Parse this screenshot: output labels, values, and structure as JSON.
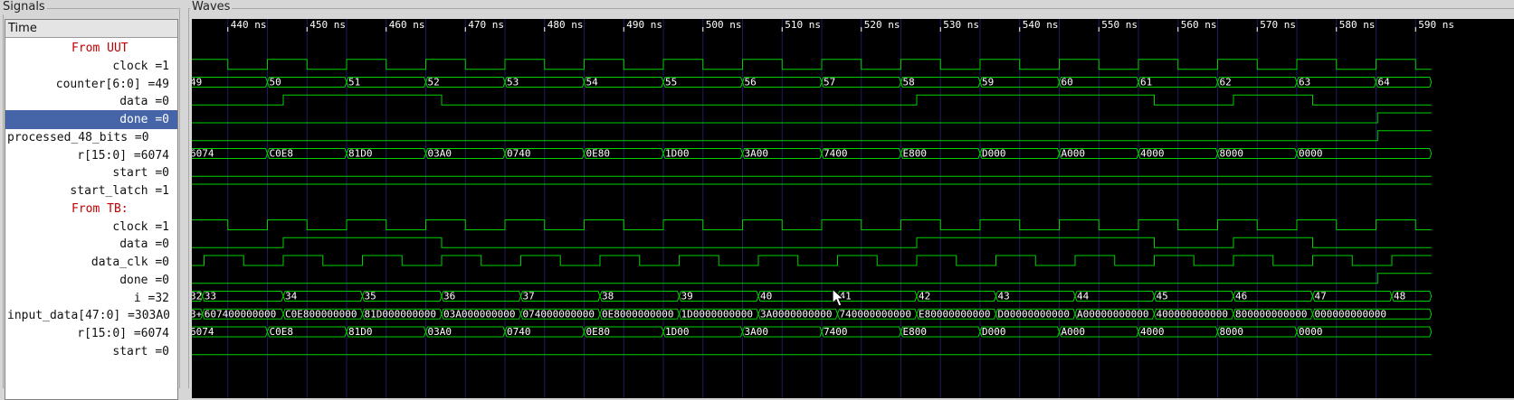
{
  "panels": {
    "signals_title": "Signals",
    "waves_title": "Waves"
  },
  "signals_header": "Time",
  "time_axis": {
    "start_ns": 435,
    "end_ns": 592,
    "label_start_ns": 440,
    "label_step_ns": 10,
    "unit": "ns",
    "labels": [
      "440 ns",
      "450 ns",
      "460 ns",
      "470 ns",
      "480 ns",
      "490 ns",
      "500 ns",
      "510 ns",
      "520 ns",
      "530 ns",
      "540 ns",
      "550 ns",
      "560 ns",
      "570 ns",
      "580 ns",
      "590 ns"
    ]
  },
  "colors": {
    "wave": "#00d000",
    "grid": "#1c1c60",
    "group_label": "#c00000",
    "selected_row": "#4565a8",
    "bus_text": "#ffffff",
    "time_text": "#ffffff"
  },
  "signals": [
    {
      "label": "From UUT",
      "group": true
    },
    {
      "label": "clock =1",
      "type": "bit",
      "trans": [
        435,
        440,
        445,
        450,
        455,
        460,
        465,
        470,
        475,
        480,
        485,
        490,
        495,
        500,
        505,
        510,
        515,
        520,
        525,
        530,
        535,
        540,
        545,
        550,
        555,
        560,
        565,
        570,
        575,
        580,
        585,
        590,
        592
      ],
      "start": 1
    },
    {
      "label": "counter[6:0] =49",
      "type": "bus",
      "trans": [
        435,
        445,
        455,
        465,
        475,
        485,
        495,
        505,
        515,
        525,
        535,
        545,
        555,
        565,
        575,
        585,
        592
      ],
      "values": [
        "49",
        "50",
        "51",
        "52",
        "53",
        "54",
        "55",
        "56",
        "57",
        "58",
        "59",
        "60",
        "61",
        "62",
        "63",
        "64"
      ]
    },
    {
      "label": "data =0",
      "type": "bit",
      "trans": [
        435,
        447,
        467,
        527,
        557,
        567,
        577,
        592
      ],
      "start": 0
    },
    {
      "label": "done =0",
      "type": "bit",
      "trans": [
        435,
        585.2,
        592
      ],
      "start": 0,
      "selected": true
    },
    {
      "label": "processed_48_bits =0",
      "type": "bit",
      "trans": [
        435,
        585.2,
        592
      ],
      "start": 0,
      "plain": true
    },
    {
      "label": "r[15:0] =6074",
      "type": "bus",
      "trans": [
        435,
        445,
        455,
        465,
        475,
        485,
        495,
        505,
        515,
        525,
        535,
        545,
        555,
        565,
        575,
        592
      ],
      "values": [
        "6074",
        "C0E8",
        "81D0",
        "03A0",
        "0740",
        "0E80",
        "1D00",
        "3A00",
        "7400",
        "E800",
        "D000",
        "A000",
        "4000",
        "8000",
        "0000"
      ]
    },
    {
      "label": "start =0",
      "type": "bit",
      "trans": [
        435,
        592
      ],
      "start": 0
    },
    {
      "label": "start_latch =1",
      "type": "bit",
      "trans": [
        435,
        592
      ],
      "start": 1
    },
    {
      "label": "From TB:",
      "group": true
    },
    {
      "label": "clock =1",
      "type": "bit",
      "trans": [
        435,
        440,
        445,
        450,
        455,
        460,
        465,
        470,
        475,
        480,
        485,
        490,
        495,
        500,
        505,
        510,
        515,
        520,
        525,
        530,
        535,
        540,
        545,
        550,
        555,
        560,
        565,
        570,
        575,
        580,
        585,
        590,
        592
      ],
      "start": 1
    },
    {
      "label": "data =0",
      "type": "bit",
      "trans": [
        435,
        447,
        467,
        527,
        557,
        567,
        577,
        592
      ],
      "start": 0
    },
    {
      "label": "data_clk =0",
      "type": "bit",
      "trans": [
        435,
        437,
        442,
        447,
        452,
        457,
        462,
        467,
        472,
        477,
        482,
        487,
        492,
        497,
        502,
        507,
        512,
        517,
        522,
        527,
        532,
        537,
        542,
        547,
        552,
        557,
        562,
        567,
        572,
        577,
        582,
        587,
        592
      ],
      "start": 0
    },
    {
      "label": "done =0",
      "type": "bit",
      "trans": [
        435,
        585.2,
        592
      ],
      "start": 0
    },
    {
      "label": "i =32",
      "type": "bus",
      "trans": [
        435,
        436.8,
        447,
        457,
        467,
        477,
        487,
        497,
        507,
        517,
        527,
        537,
        547,
        557,
        567,
        577,
        587,
        592
      ],
      "values": [
        "32",
        "33",
        "34",
        "35",
        "36",
        "37",
        "38",
        "39",
        "40",
        "41",
        "42",
        "43",
        "44",
        "45",
        "46",
        "47",
        "48"
      ]
    },
    {
      "label": "input_data[47:0] =303A0",
      "type": "bus",
      "trans": [
        435,
        436.8,
        447,
        457,
        467,
        477,
        487,
        497,
        507,
        517,
        527,
        537,
        547,
        557,
        567,
        577,
        592
      ],
      "values": [
        "3+",
        "607400000000",
        "C0E800000000",
        "81D000000000",
        "03A000000000",
        "074000000000",
        "0E8000000000",
        "1D0000000000",
        "3A0000000000",
        "740000000000",
        "E80000000000",
        "D00000000000",
        "A00000000000",
        "400000000000",
        "800000000000",
        "000000000000"
      ],
      "plain": true
    },
    {
      "label": "r[15:0] =6074",
      "type": "bus",
      "trans": [
        435,
        445,
        455,
        465,
        475,
        485,
        495,
        505,
        515,
        525,
        535,
        545,
        555,
        565,
        575,
        592
      ],
      "values": [
        "6074",
        "C0E8",
        "81D0",
        "03A0",
        "0740",
        "0E80",
        "1D00",
        "3A00",
        "7400",
        "E800",
        "D000",
        "A000",
        "4000",
        "8000",
        "0000"
      ]
    },
    {
      "label": "start =0",
      "type": "bit",
      "trans": [
        435,
        592
      ],
      "start": 0
    }
  ]
}
